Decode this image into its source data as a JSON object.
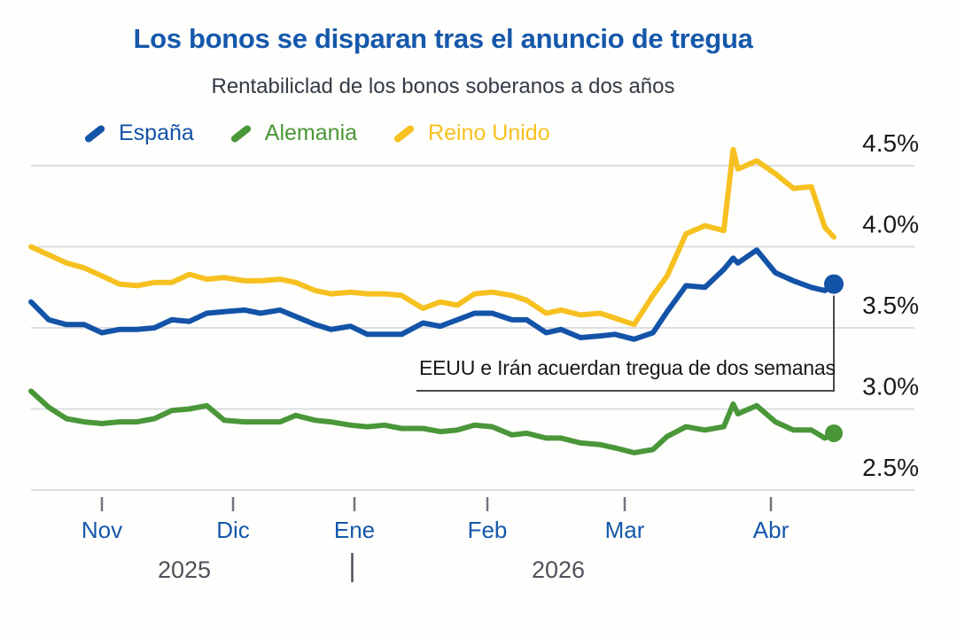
{
  "chart_data": {
    "type": "line",
    "title": "Los bonos se disparan tras el anuncio de tregua",
    "subtitle": "Rentabiliclad de los bonos soberanos a dos años",
    "unit": "%",
    "grid": "horizontal",
    "legend_position": "top-left",
    "y_labels_position": "right",
    "ylim": [
      2.5,
      4.6
    ],
    "x": [
      "2025-10-16",
      "2025-10-20",
      "2025-10-24",
      "2025-10-28",
      "2025-11-01",
      "2025-11-05",
      "2025-11-09",
      "2025-11-13",
      "2025-11-17",
      "2025-11-21",
      "2025-11-25",
      "2025-11-29",
      "2025-12-04",
      "2025-12-08",
      "2025-12-13",
      "2025-12-17",
      "2025-12-22",
      "2025-12-26",
      "2025-12-31",
      "2026-01-04",
      "2026-01-08",
      "2026-01-12",
      "2026-01-17",
      "2026-01-21",
      "2026-01-25",
      "2026-01-29",
      "2026-02-02",
      "2026-02-06",
      "2026-02-09",
      "2026-02-13",
      "2026-02-16",
      "2026-02-20",
      "2026-02-24",
      "2026-02-27",
      "2026-03-03",
      "2026-03-07",
      "2026-03-10",
      "2026-03-14",
      "2026-03-18",
      "2026-03-22",
      "2026-03-24",
      "2026-03-25",
      "2026-03-29",
      "2026-04-02",
      "2026-04-06",
      "2026-04-10",
      "2026-04-13",
      "2026-04-15"
    ],
    "series": [
      {
        "name": "España",
        "color": "#1353a8",
        "end_dot": true,
        "values": [
          3.66,
          3.55,
          3.52,
          3.52,
          3.47,
          3.49,
          3.49,
          3.5,
          3.55,
          3.54,
          3.59,
          3.6,
          3.61,
          3.59,
          3.61,
          3.57,
          3.52,
          3.49,
          3.51,
          3.46,
          3.46,
          3.46,
          3.53,
          3.51,
          3.55,
          3.59,
          3.59,
          3.55,
          3.55,
          3.47,
          3.49,
          3.44,
          3.45,
          3.46,
          3.43,
          3.47,
          3.6,
          3.76,
          3.75,
          3.86,
          3.93,
          3.9,
          3.98,
          3.84,
          3.79,
          3.75,
          3.73,
          3.77
        ]
      },
      {
        "name": "Alemania",
        "color": "#4a9739",
        "end_dot": true,
        "values": [
          3.11,
          3.01,
          2.94,
          2.92,
          2.91,
          2.92,
          2.92,
          2.94,
          2.99,
          3.0,
          3.02,
          2.93,
          2.92,
          2.92,
          2.92,
          2.96,
          2.93,
          2.92,
          2.9,
          2.89,
          2.9,
          2.88,
          2.88,
          2.86,
          2.87,
          2.9,
          2.89,
          2.84,
          2.85,
          2.82,
          2.82,
          2.79,
          2.78,
          2.76,
          2.73,
          2.75,
          2.83,
          2.89,
          2.87,
          2.89,
          3.03,
          2.97,
          3.02,
          2.92,
          2.87,
          2.87,
          2.82,
          2.85
        ]
      },
      {
        "name": "Reino Unido",
        "color": "#f6c120",
        "end_dot": false,
        "values": [
          4.0,
          3.95,
          3.9,
          3.87,
          3.82,
          3.77,
          3.76,
          3.78,
          3.78,
          3.83,
          3.8,
          3.81,
          3.79,
          3.79,
          3.8,
          3.78,
          3.73,
          3.71,
          3.72,
          3.71,
          3.71,
          3.7,
          3.62,
          3.66,
          3.64,
          3.71,
          3.72,
          3.7,
          3.67,
          3.59,
          3.61,
          3.58,
          3.59,
          3.56,
          3.52,
          3.7,
          3.82,
          4.08,
          4.13,
          4.1,
          4.6,
          4.48,
          4.53,
          4.45,
          4.36,
          4.37,
          4.12,
          4.06
        ]
      }
    ],
    "y_ticks": {
      "values": [
        4.5,
        4.0,
        3.5,
        3.0,
        2.5
      ],
      "labels": [
        "4.5%",
        "4.0%",
        "3.5%",
        "3.0%",
        "2.5%"
      ]
    },
    "x_ticks": {
      "dates": [
        "2025-11-01",
        "2025-12-01",
        "2026-01-01",
        "2026-02-01",
        "2026-03-01",
        "2026-04-01"
      ],
      "labels": [
        "Nov",
        "Dic",
        "Ene",
        "Feb",
        "Mar",
        "Abr"
      ]
    },
    "years": [
      "2025",
      "2026"
    ],
    "annotation": {
      "text": "EEUU e Irán acuerdan tregua de dos semanas",
      "points_to_series": "España",
      "points_to_date": "2026-04-15"
    }
  },
  "colors": {
    "title_blue": "#1558ab",
    "subtitle_gray": "#343b46",
    "axis_label_blue": "#1558ab",
    "year_gray": "#4d525b",
    "gridline": "#dcdee1",
    "tick": "#70757d",
    "annotation_line": "#46494d",
    "y_label": "#17191d",
    "background": "#fefefc"
  }
}
